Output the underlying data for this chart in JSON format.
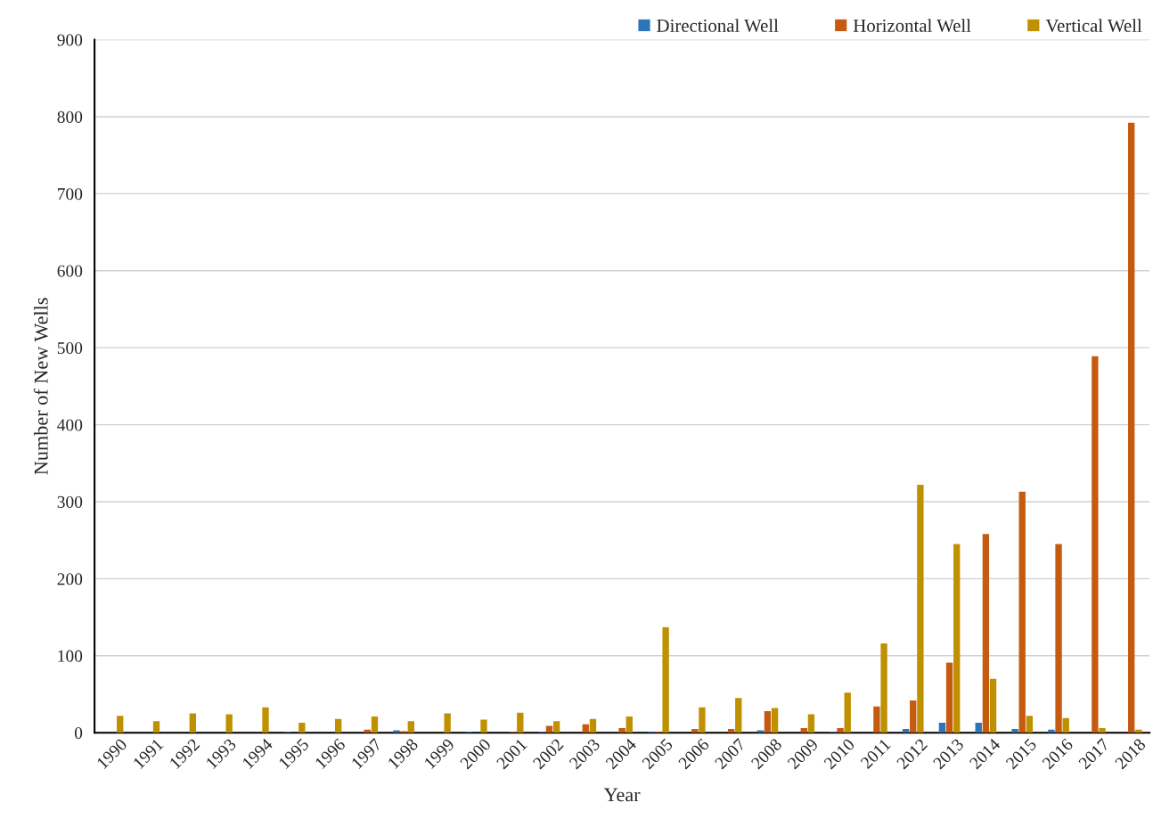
{
  "chart_data": {
    "type": "bar",
    "xlabel": "Year",
    "ylabel": "Number of New Wells",
    "categories": [
      "1990",
      "1991",
      "1992",
      "1993",
      "1994",
      "1995",
      "1996",
      "1997",
      "1998",
      "1999",
      "2000",
      "2001",
      "2002",
      "2003",
      "2004",
      "2005",
      "2006",
      "2007",
      "2008",
      "2009",
      "2010",
      "2011",
      "2012",
      "2013",
      "2014",
      "2015",
      "2016",
      "2017",
      "2018"
    ],
    "series": [
      {
        "name": "Directional Well",
        "color": "#2e75b6",
        "values": [
          0,
          0,
          0,
          0,
          0,
          1,
          0,
          0,
          3,
          0,
          1,
          0,
          1,
          0,
          0,
          1,
          0,
          0,
          3,
          0,
          1,
          0,
          5,
          13,
          13,
          5,
          4,
          0,
          0
        ]
      },
      {
        "name": "Horizontal Well",
        "color": "#c55a11",
        "values": [
          0,
          0,
          0,
          0,
          0,
          0,
          0,
          4,
          2,
          0,
          0,
          1,
          9,
          11,
          6,
          1,
          5,
          5,
          28,
          6,
          6,
          34,
          42,
          91,
          258,
          313,
          245,
          489,
          792
        ]
      },
      {
        "name": "Vertical Well",
        "color": "#bf9000",
        "values": [
          22,
          15,
          25,
          24,
          33,
          13,
          18,
          21,
          15,
          25,
          17,
          26,
          15,
          18,
          21,
          137,
          33,
          45,
          32,
          24,
          52,
          116,
          322,
          245,
          70,
          22,
          19,
          6,
          4
        ]
      }
    ],
    "ylim": [
      0,
      900
    ],
    "yticks": [
      0,
      100,
      200,
      300,
      400,
      500,
      600,
      700,
      800,
      900
    ],
    "grid": "y",
    "legend": "top right"
  }
}
